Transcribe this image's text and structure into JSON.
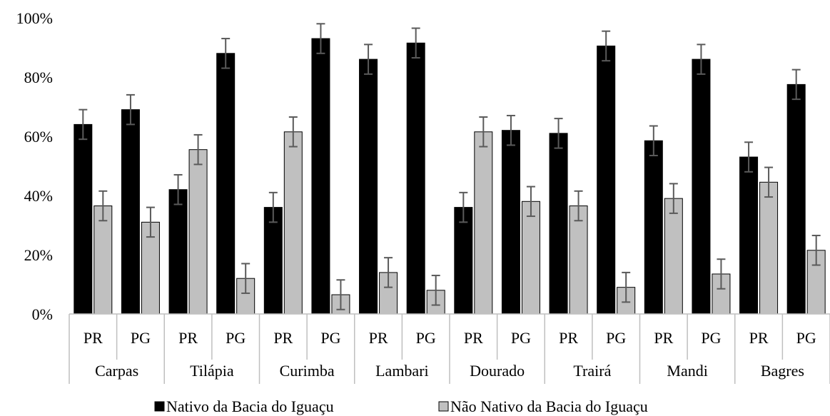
{
  "chart_data": {
    "type": "bar",
    "groups": [
      "Carpas",
      "Tilápia",
      "Curimba",
      "Lambari",
      "Dourado",
      "Trairá",
      "Mandi",
      "Bagres"
    ],
    "subcategories": [
      "PR",
      "PG"
    ],
    "series": [
      {
        "name": "Nativo da Bacia do Iguaçu",
        "color": "#000000",
        "values": [
          0.64,
          0.69,
          0.42,
          0.88,
          0.36,
          0.93,
          0.86,
          0.915,
          0.36,
          0.62,
          0.61,
          0.905,
          0.585,
          0.86,
          0.53,
          0.775
        ],
        "error": [
          0.05,
          0.05,
          0.05,
          0.05,
          0.05,
          0.05,
          0.05,
          0.05,
          0.05,
          0.05,
          0.05,
          0.05,
          0.05,
          0.05,
          0.05,
          0.05
        ]
      },
      {
        "name": "Não Nativo da Bacia do Iguaçu",
        "color": "#c0c0c0",
        "values": [
          0.365,
          0.31,
          0.555,
          0.12,
          0.615,
          0.065,
          0.14,
          0.08,
          0.615,
          0.38,
          0.365,
          0.09,
          0.39,
          0.135,
          0.445,
          0.215
        ],
        "error": [
          0.05,
          0.05,
          0.05,
          0.05,
          0.05,
          0.05,
          0.05,
          0.05,
          0.05,
          0.05,
          0.05,
          0.05,
          0.05,
          0.05,
          0.05,
          0.05
        ]
      }
    ],
    "ylim": [
      0,
      1
    ],
    "yticks": [
      "0%",
      "20%",
      "40%",
      "60%",
      "80%",
      "100%"
    ],
    "grid": false,
    "legend": "bottom",
    "error_bars": true
  }
}
